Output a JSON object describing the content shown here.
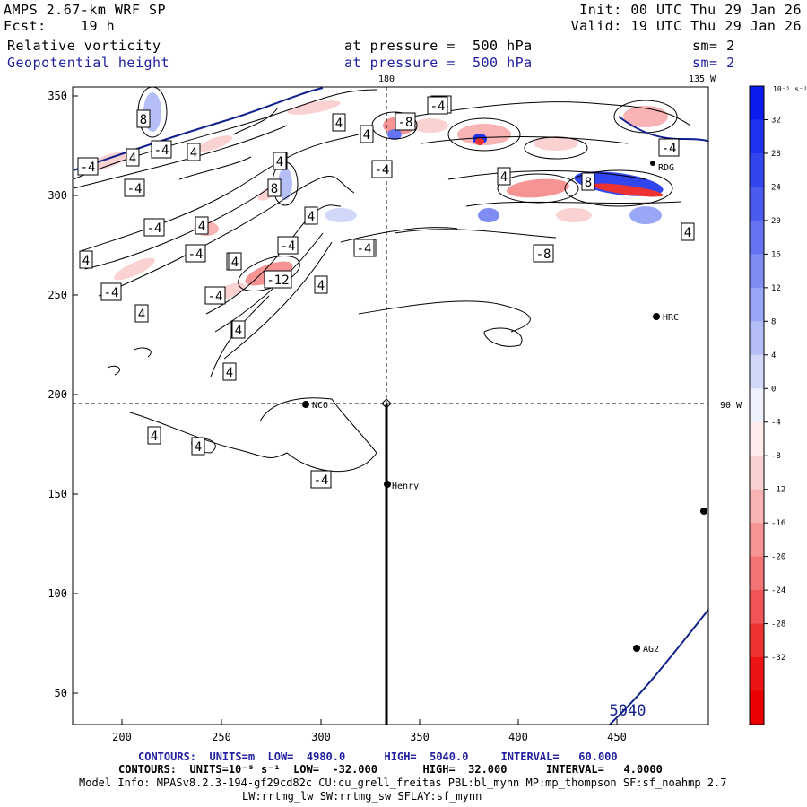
{
  "header": {
    "model": "AMPS 2.67-km WRF SP",
    "fcst_label": "Fcst:",
    "fcst_value": "19 h",
    "init": "Init: 00 UTC Thu 29 Jan 26",
    "valid": "Valid: 19 UTC Thu 29 Jan 26",
    "field1": "Relative vorticity",
    "field1_pressure": "at pressure =  500 hPa",
    "field1_sm": "sm= 2",
    "field2": "Geopotential height",
    "field2_pressure": "at pressure =  500 hPa",
    "field2_sm": "sm= 2"
  },
  "map": {
    "top_label_180": "180",
    "top_label_135w": "135 W",
    "right_label_90w": "90 W",
    "x_ticks": [
      "200",
      "250",
      "300",
      "350",
      "400",
      "450"
    ],
    "y_ticks": [
      "350",
      "300",
      "250",
      "200",
      "150",
      "100",
      "50"
    ],
    "height_contour_label": "5040",
    "stations": [
      {
        "name": "NCO"
      },
      {
        "name": "Henry"
      },
      {
        "name": "HRC"
      },
      {
        "name": "AG2"
      },
      {
        "name": "RDG"
      },
      {
        "name": ""
      }
    ],
    "contour_labels": [
      "8",
      "4",
      "-4",
      "4",
      "-4",
      "-4",
      "4",
      "4",
      "-8",
      "-4",
      "4",
      "4",
      "-4",
      "4",
      "-4",
      "4",
      "8",
      "4",
      "-4",
      "4",
      "-4",
      "4",
      "-4",
      "-4",
      "4",
      "-4",
      "-12",
      "4",
      "-8",
      "-4",
      "4",
      "4",
      "4",
      "4",
      "-4",
      "4",
      "4",
      "4",
      "8",
      "-4",
      "-4",
      "4",
      "4"
    ],
    "colors": {
      "height_contour": "#10208c",
      "positive_vorticity": "#1030f0",
      "negative_vorticity": "#f01010",
      "crosshair": "#000000"
    }
  },
  "colorbar": {
    "unit": "10⁻⁵ s⁻¹",
    "labels": [
      "32",
      "28",
      "24",
      "20",
      "16",
      "12",
      "8",
      "4",
      "0",
      "-4",
      "-8",
      "-12",
      "-16",
      "-20",
      "-24",
      "-28",
      "-32"
    ],
    "colors": [
      "#0a1cf0",
      "#1e32f0",
      "#3246f0",
      "#4a5cf0",
      "#6474f2",
      "#7e8cf4",
      "#9aa6f6",
      "#b6bef8",
      "#d2d8fa",
      "#eef0fc",
      "#fcecec",
      "#fad2d2",
      "#f8b4b4",
      "#f69494",
      "#f27474",
      "#f05454",
      "#ee3232",
      "#ec1414",
      "#ea0000"
    ]
  },
  "footer": {
    "line1": "CONTOURS:  UNITS=m  LOW=  4980.0      HIGH=  5040.0     INTERVAL=   60.000",
    "line2": "CONTOURS:  UNITS=10⁻⁵ s⁻¹  LOW=  -32.000       HIGH=  32.000      INTERVAL=   4.0000",
    "line3": "Model Info: MPASv8.2.3-194-gf29cd82c CU:cu_grell_freitas PBL:bl_mynn MP:mp_thompson SF:sf_noahmp 2.7",
    "line4": "LW:rrtmg_lw SW:rrtmg_sw SFLAY:sf_mynn"
  }
}
